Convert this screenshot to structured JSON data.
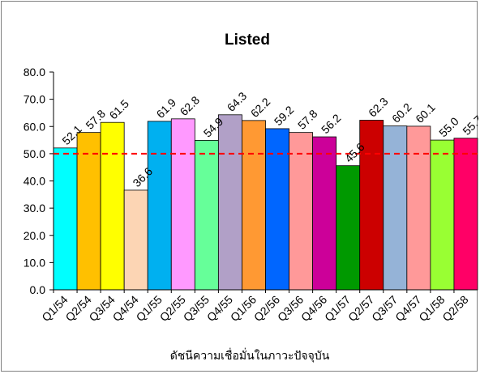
{
  "chart_data": {
    "type": "bar",
    "title": "Listed",
    "xlabel": "ดัชนีความเชื่อมั่นในภาวะปัจจุบัน",
    "ylabel": "",
    "ylim": [
      0,
      80
    ],
    "yticks": [
      "0.0",
      "10.0",
      "20.0",
      "30.0",
      "40.0",
      "50.0",
      "60.0",
      "70.0",
      "80.0"
    ],
    "categories": [
      "Q1/54",
      "Q2/54",
      "Q3/54",
      "Q4/54",
      "Q1/55",
      "Q2/55",
      "Q3/55",
      "Q4/55",
      "Q1/56",
      "Q2/56",
      "Q3/56",
      "Q4/56",
      "Q1/57",
      "Q2/57",
      "Q3/57",
      "Q4/57",
      "Q1/58",
      "Q2/58"
    ],
    "values": [
      52.1,
      57.8,
      61.5,
      36.6,
      61.9,
      62.8,
      54.9,
      64.3,
      62.2,
      59.2,
      57.8,
      56.2,
      45.6,
      62.3,
      60.2,
      60.1,
      55.0,
      55.7
    ],
    "value_labels": [
      "52.1",
      "57.8",
      "61.5",
      "36.6",
      "61.9",
      "62.8",
      "54.9",
      "64.3",
      "62.2",
      "59.2",
      "57.8",
      "56.2",
      "45.6",
      "62.3",
      "60.2",
      "60.1",
      "55.0",
      "55.7"
    ],
    "bar_colors": [
      "#00ffff",
      "#ffc000",
      "#ffff00",
      "#fcd5b4",
      "#00b0f0",
      "#ff99ff",
      "#66ff99",
      "#b1a0c7",
      "#ff9933",
      "#0066ff",
      "#ff9999",
      "#cc0099",
      "#009900",
      "#cc0000",
      "#95b3d7",
      "#ff9999",
      "#99ff33",
      "#ff0066"
    ],
    "reference_line": {
      "value": 50,
      "color": "#ff0000",
      "style": "dashed"
    },
    "grid": false,
    "legend": "none"
  }
}
